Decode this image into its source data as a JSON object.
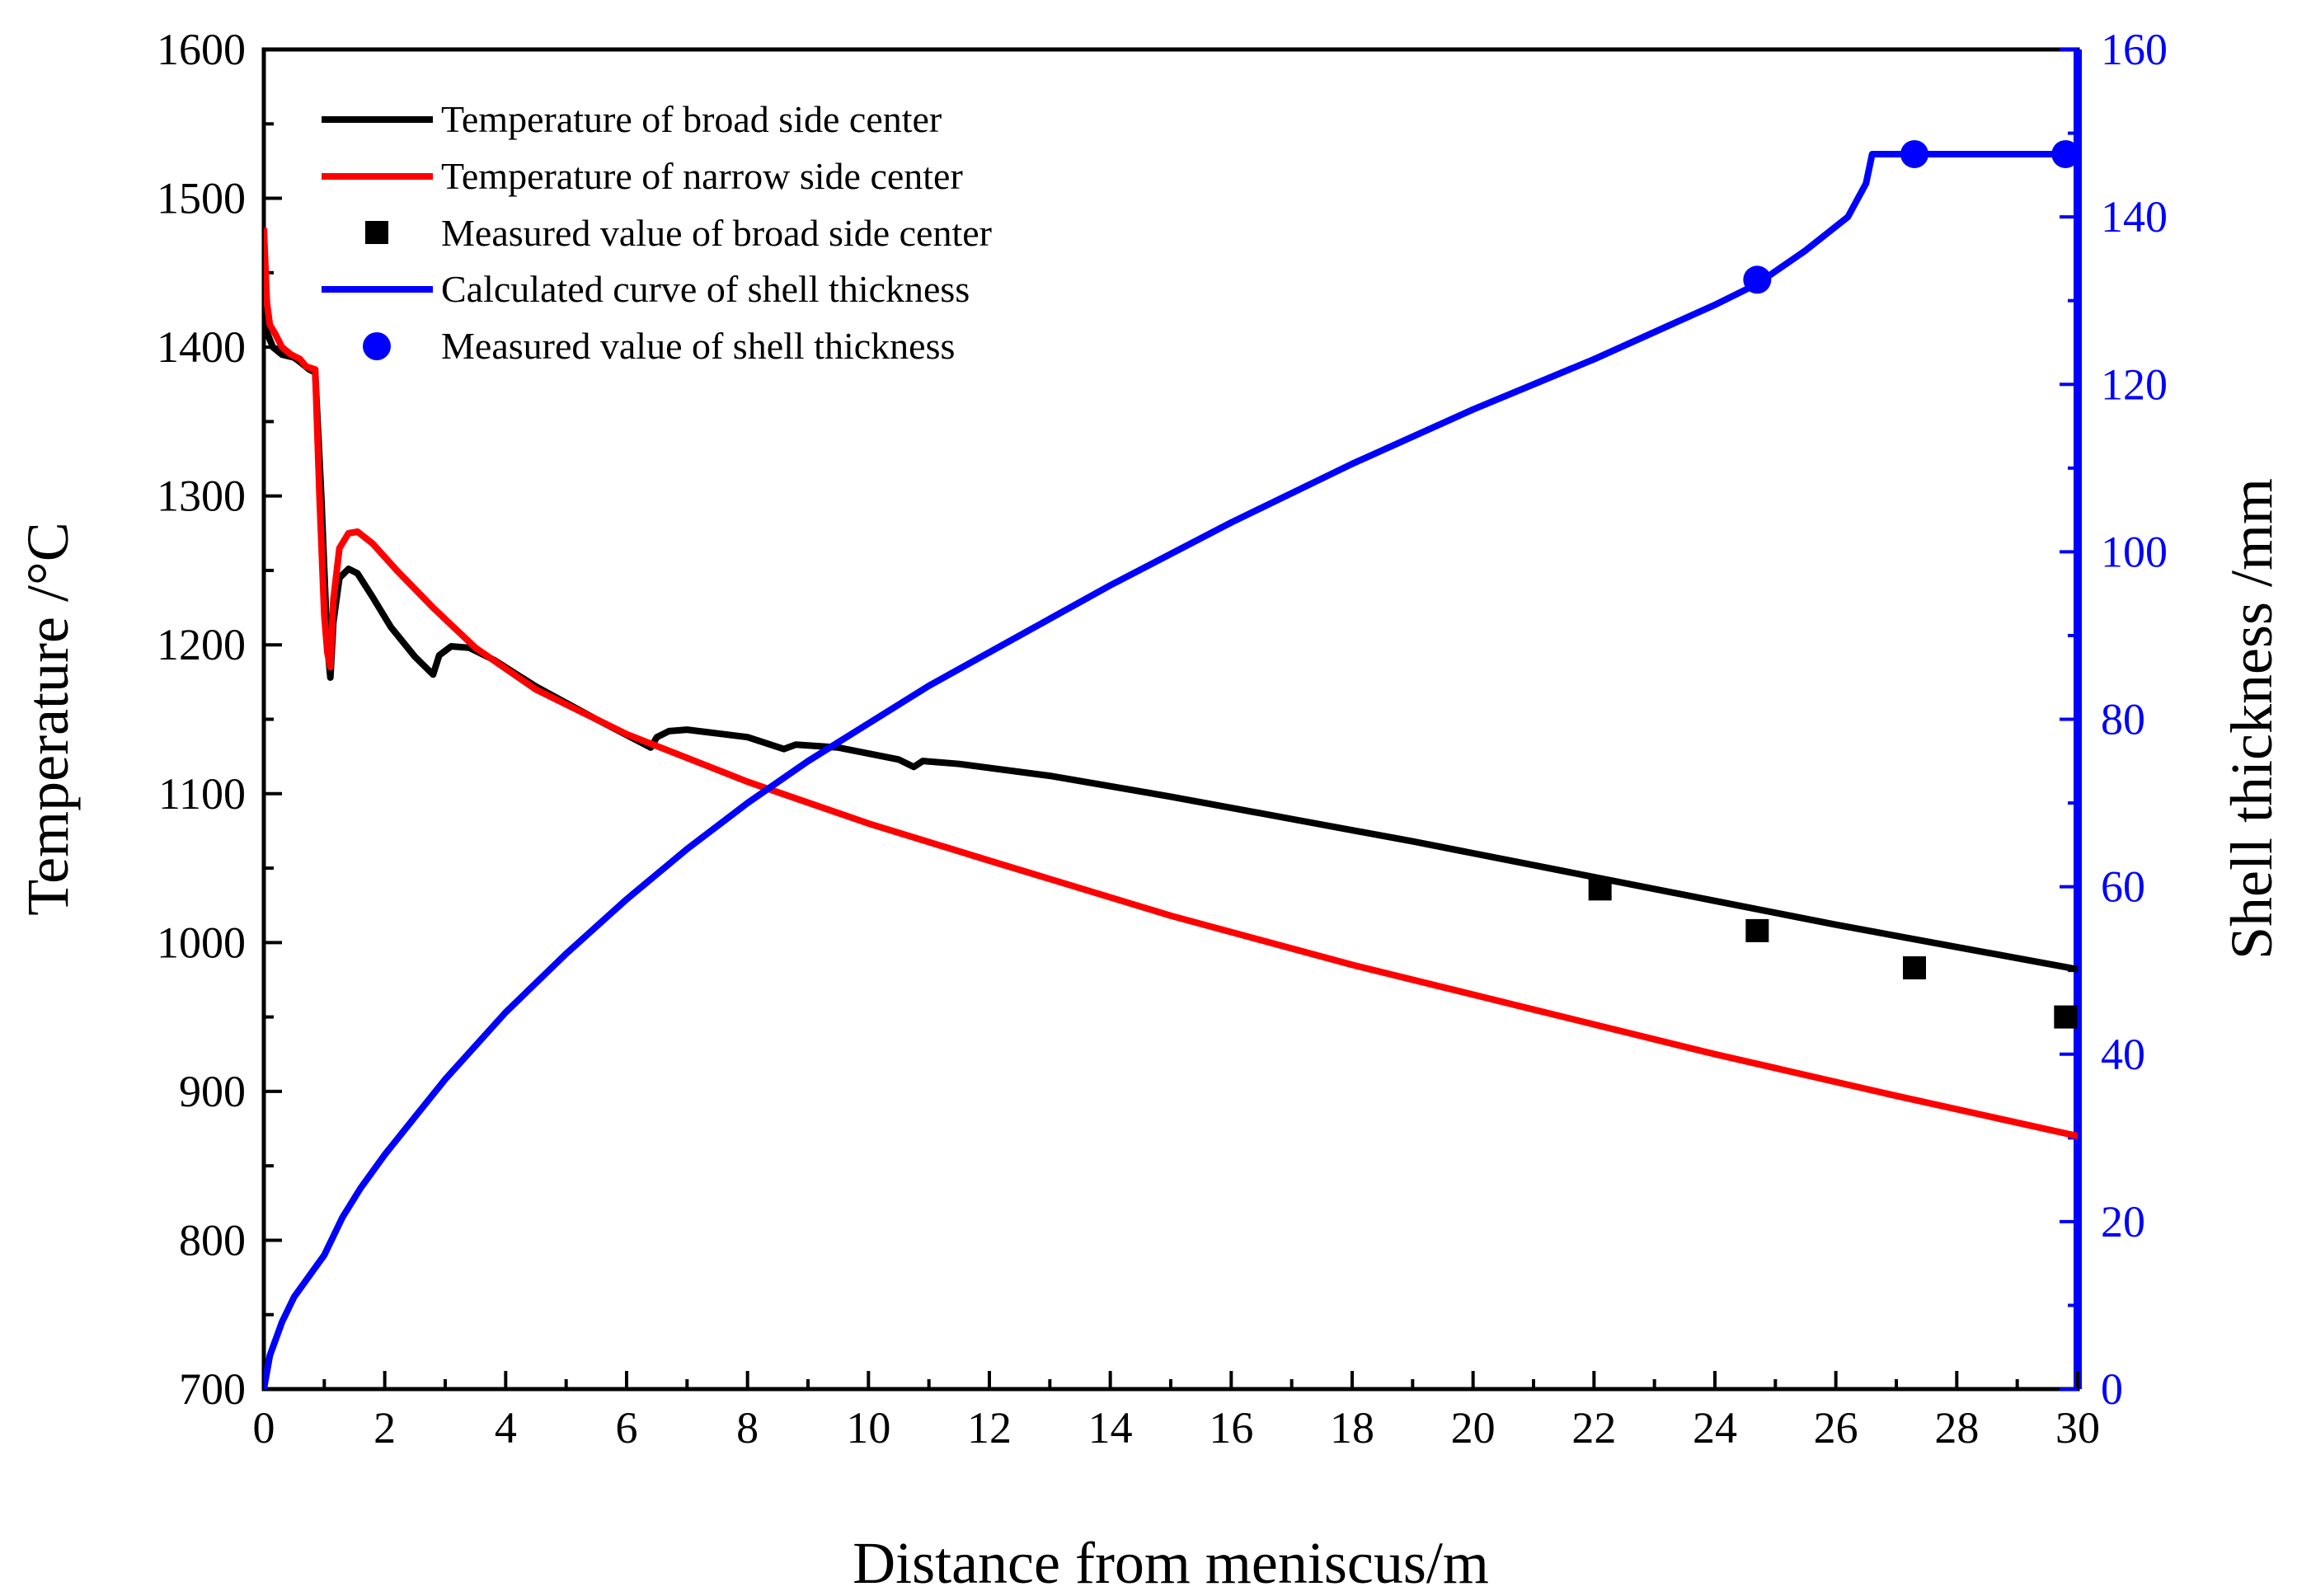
{
  "chart_data": {
    "type": "line",
    "title": "",
    "xlabel": "Distance from meniscus/m",
    "ylabel_left": "Temperature /°C",
    "ylabel_right": "Shell thickness /mm",
    "xlim": [
      0,
      30
    ],
    "ylim_left": [
      700,
      1600
    ],
    "ylim_right": [
      0,
      160
    ],
    "x_ticks": [
      0,
      2,
      4,
      6,
      8,
      10,
      12,
      14,
      16,
      18,
      20,
      22,
      24,
      26,
      28,
      30
    ],
    "y_left_ticks": [
      700,
      800,
      900,
      1000,
      1100,
      1200,
      1300,
      1400,
      1500,
      1600
    ],
    "y_right_ticks": [
      0,
      20,
      40,
      60,
      80,
      100,
      120,
      140,
      160
    ],
    "grid": false,
    "legend_position": "top-left",
    "colors": {
      "broad": "#000000",
      "narrow": "#ff0000",
      "shell": "#0000ff",
      "right_axis": "#0000ff"
    },
    "series": [
      {
        "name": "Temperature of broad side center",
        "kind": "line",
        "axis": "left",
        "color": "#000000",
        "x": [
          0,
          0.05,
          0.15,
          0.3,
          0.5,
          0.6,
          0.75,
          0.85,
          0.95,
          1.05,
          1.1,
          1.15,
          1.25,
          1.4,
          1.55,
          1.8,
          2.1,
          2.5,
          2.8,
          2.9,
          3.1,
          3.4,
          3.8,
          4.5,
          5.5,
          6.4,
          6.5,
          6.7,
          7.0,
          8.0,
          8.6,
          8.8,
          9.5,
          10.5,
          10.75,
          10.9,
          11.5,
          13.0,
          15.0,
          17.0,
          19.0,
          21.0,
          22.0,
          24.0,
          26.0,
          28.0,
          30.0
        ],
        "y": [
          1440,
          1410,
          1400,
          1395,
          1393,
          1390,
          1385,
          1383,
          1300,
          1200,
          1178,
          1215,
          1245,
          1251,
          1248,
          1232,
          1212,
          1192,
          1180,
          1193,
          1199,
          1198,
          1190,
          1172,
          1150,
          1131,
          1138,
          1142,
          1143,
          1138,
          1130,
          1133,
          1131,
          1123,
          1118,
          1122,
          1120,
          1112,
          1098,
          1083,
          1068,
          1052,
          1044,
          1028,
          1012,
          997,
          982
        ]
      },
      {
        "name": "Temperature of narrow side center",
        "kind": "line",
        "axis": "left",
        "color": "#ff0000",
        "x": [
          0,
          0.05,
          0.1,
          0.2,
          0.3,
          0.45,
          0.6,
          0.7,
          0.85,
          0.92,
          1.0,
          1.05,
          1.1,
          1.15,
          1.25,
          1.4,
          1.55,
          1.8,
          2.2,
          2.8,
          3.5,
          4.5,
          6.0,
          8.0,
          10.0,
          12.0,
          15.0,
          18.0,
          21.0,
          24.0,
          27.0,
          30.0
        ],
        "y": [
          1480,
          1430,
          1415,
          1408,
          1400,
          1395,
          1392,
          1387,
          1385,
          1300,
          1220,
          1195,
          1185,
          1230,
          1265,
          1275,
          1276,
          1268,
          1250,
          1225,
          1198,
          1170,
          1140,
          1108,
          1080,
          1055,
          1018,
          985,
          955,
          925,
          897,
          870
        ]
      },
      {
        "name": "Measured value of broad side center",
        "kind": "scatter",
        "marker": "square",
        "axis": "left",
        "color": "#000000",
        "x": [
          22.1,
          24.7,
          27.3,
          29.8
        ],
        "y": [
          1036,
          1008,
          983,
          950
        ]
      },
      {
        "name": "Calculated curve of shell thickness",
        "kind": "line",
        "axis": "right",
        "color": "#0000ff",
        "x": [
          0,
          0.1,
          0.3,
          0.5,
          0.85,
          1.0,
          1.3,
          1.6,
          2.0,
          2.5,
          3.0,
          4.0,
          5.0,
          6.0,
          7.0,
          8.0,
          9.0,
          10.0,
          11.0,
          12.0,
          14.0,
          16.0,
          18.0,
          20.0,
          22.0,
          24.0,
          24.7,
          25.5,
          26.2,
          26.5,
          26.6,
          27.0,
          28.0,
          29.0,
          30.0
        ],
        "y": [
          0,
          4,
          8,
          11,
          14.5,
          16,
          20.5,
          24,
          28,
          32.5,
          37,
          45,
          52,
          58.5,
          64.5,
          70,
          75,
          79.5,
          84,
          88,
          96,
          103.5,
          110.5,
          117,
          123,
          129.5,
          132,
          136,
          140,
          144,
          147.5,
          147.5,
          147.5,
          147.5,
          147.5
        ]
      },
      {
        "name": "Measured value of shell thickness",
        "kind": "scatter",
        "marker": "circle",
        "axis": "right",
        "color": "#0000ff",
        "x": [
          24.7,
          27.3,
          29.8
        ],
        "y": [
          132.5,
          147.5,
          147.5
        ]
      }
    ]
  }
}
